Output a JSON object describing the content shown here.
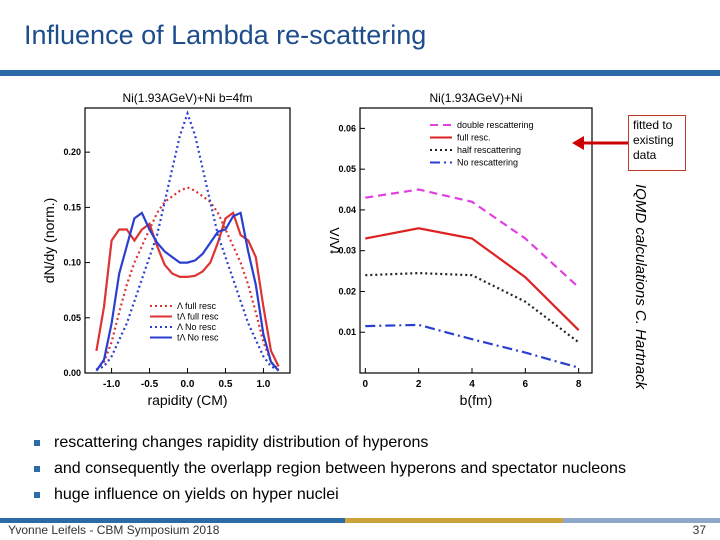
{
  "slide": {
    "title": "Influence of Lambda re-scattering",
    "note_lines": [
      "fitted to",
      "existing",
      "data"
    ],
    "vertical_credit": "IQMD calculations C. Hartnack",
    "bullets": [
      "rescattering changes rapidity distribution of hyperons",
      "and consequently the overlapp region between hyperons and spectator nucleons",
      "huge influence on yields on hyper nuclei"
    ],
    "footer": "Yvonne Leifels - CBM Symposium 2018",
    "page_number": "37",
    "colors": {
      "title": "#1e4d8c",
      "bar": "#2c6aa8",
      "arrow": "#cc0000"
    }
  },
  "chart_data": [
    {
      "type": "line",
      "title": "Ni(1.93AGeV)+Ni b=4fm",
      "xlabel": "rapidity (CM)",
      "ylabel": "dN/dy (norm.)",
      "xlim": [
        -1.35,
        1.35
      ],
      "ylim": [
        0,
        0.24
      ],
      "xticks": [
        -1.0,
        -0.5,
        0.0,
        0.5,
        1.0
      ],
      "xtick_labels": [
        "-1.0",
        "-0.5",
        "0.0",
        "0.5",
        "1.0"
      ],
      "yticks": [
        0,
        0.05,
        0.1,
        0.15,
        0.2
      ],
      "ytick_labels": [
        "0.00",
        "0.05",
        "0.10",
        "0.15",
        "0.20"
      ],
      "legend_position": "bottom-right",
      "x": [
        -1.2,
        -1.1,
        -1.0,
        -0.9,
        -0.8,
        -0.7,
        -0.6,
        -0.5,
        -0.4,
        -0.3,
        -0.2,
        -0.1,
        0.0,
        0.1,
        0.2,
        0.3,
        0.4,
        0.5,
        0.6,
        0.7,
        0.8,
        0.9,
        1.0,
        1.1,
        1.2
      ],
      "series": [
        {
          "name": "Λ full resc",
          "color": "#dd3333",
          "dash": "dotted",
          "values": [
            0.003,
            0.01,
            0.028,
            0.055,
            0.08,
            0.1,
            0.115,
            0.13,
            0.145,
            0.155,
            0.16,
            0.165,
            0.168,
            0.165,
            0.16,
            0.155,
            0.145,
            0.13,
            0.115,
            0.1,
            0.08,
            0.055,
            0.028,
            0.01,
            0.003
          ]
        },
        {
          "name": "tΛ full resc",
          "color": "#dd3333",
          "dash": "solid",
          "values": [
            0.02,
            0.06,
            0.12,
            0.13,
            0.13,
            0.12,
            0.13,
            0.135,
            0.115,
            0.098,
            0.09,
            0.087,
            0.087,
            0.088,
            0.092,
            0.1,
            0.118,
            0.14,
            0.145,
            0.125,
            0.12,
            0.105,
            0.06,
            0.02,
            0.006
          ]
        },
        {
          "name": "Λ No resc",
          "color": "#2a3fcf",
          "dash": "dotted",
          "values": [
            0.003,
            0.006,
            0.015,
            0.03,
            0.045,
            0.065,
            0.085,
            0.105,
            0.125,
            0.155,
            0.185,
            0.215,
            0.235,
            0.215,
            0.185,
            0.155,
            0.125,
            0.105,
            0.085,
            0.065,
            0.045,
            0.03,
            0.015,
            0.006,
            0.003
          ]
        },
        {
          "name": "tΛ No resc",
          "color": "#2a3fcf",
          "dash": "solid",
          "values": [
            0.002,
            0.012,
            0.045,
            0.09,
            0.115,
            0.14,
            0.145,
            0.13,
            0.118,
            0.11,
            0.105,
            0.1,
            0.1,
            0.102,
            0.108,
            0.118,
            0.128,
            0.13,
            0.142,
            0.145,
            0.11,
            0.08,
            0.035,
            0.01,
            0.002
          ]
        }
      ]
    },
    {
      "type": "line",
      "title": "Ni(1.93AGeV)+Ni",
      "xlabel": "b(fm)",
      "ylabel": "tΛ/Λ",
      "xlim": [
        -0.2,
        8.5
      ],
      "ylim": [
        0,
        0.065
      ],
      "xticks": [
        0,
        2,
        4,
        6,
        8
      ],
      "xtick_labels": [
        "0",
        "2",
        "4",
        "6",
        "8"
      ],
      "yticks": [
        0.01,
        0.02,
        0.03,
        0.04,
        0.05,
        0.06
      ],
      "ytick_labels": [
        "0.01",
        "0.02",
        "0.03",
        "0.04",
        "0.05",
        "0.06"
      ],
      "legend_position": "top-right",
      "x": [
        0,
        2,
        4,
        6,
        8
      ],
      "series": [
        {
          "name": "double rescattering",
          "color": "#e040e0",
          "dash": "dashed",
          "values": [
            0.043,
            0.045,
            0.042,
            0.033,
            0.021
          ]
        },
        {
          "name": "full resc.",
          "color": "#dd2222",
          "dash": "solid",
          "values": [
            0.033,
            0.0355,
            0.033,
            0.0235,
            0.0105
          ]
        },
        {
          "name": "half rescattering",
          "color": "#222222",
          "dash": "dotted",
          "values": [
            0.024,
            0.0245,
            0.024,
            0.0175,
            0.0075
          ]
        },
        {
          "name": "No rescattering",
          "color": "#2a3fcf",
          "dash": "dashdot",
          "values": [
            0.0115,
            0.0118,
            0.0083,
            0.005,
            0.0013
          ]
        }
      ]
    }
  ]
}
